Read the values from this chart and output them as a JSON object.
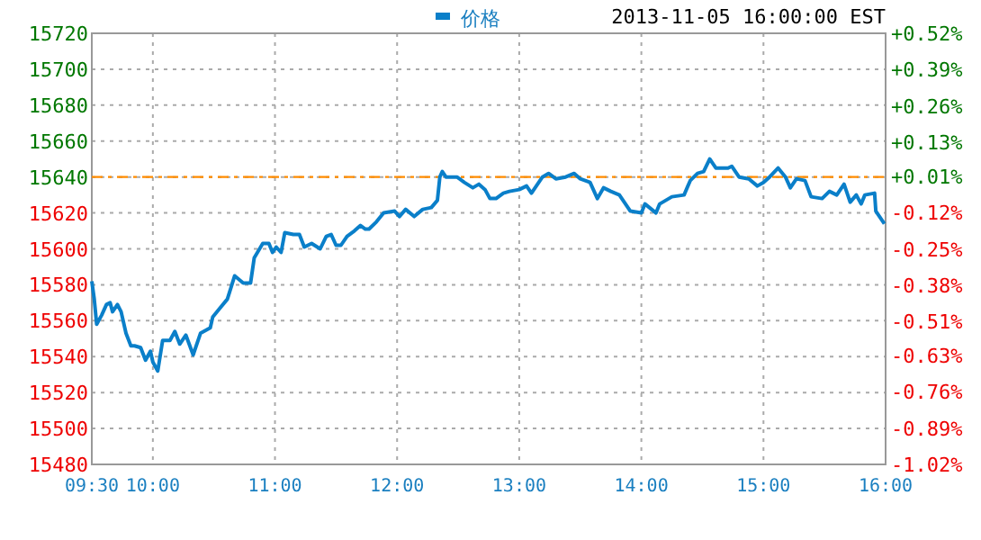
{
  "chart_data": {
    "type": "line",
    "subtitle": "2013-11-05 16:00:00 EST",
    "x": [
      9.5,
      9.52,
      9.54,
      9.58,
      9.62,
      9.65,
      9.67,
      9.71,
      9.74,
      9.78,
      9.82,
      9.85,
      9.9,
      9.94,
      9.98,
      10.0,
      10.04,
      10.08,
      10.14,
      10.18,
      10.22,
      10.27,
      10.33,
      10.39,
      10.47,
      10.49,
      10.55,
      10.61,
      10.67,
      10.74,
      10.8,
      10.83,
      10.9,
      10.95,
      10.98,
      11.01,
      11.05,
      11.08,
      11.15,
      11.2,
      11.24,
      11.3,
      11.37,
      11.42,
      11.46,
      11.5,
      11.54,
      11.59,
      11.65,
      11.7,
      11.74,
      11.77,
      11.83,
      11.89,
      11.98,
      12.02,
      12.07,
      12.14,
      12.21,
      12.28,
      12.33,
      12.35,
      12.37,
      12.4,
      12.49,
      12.55,
      12.62,
      12.67,
      12.72,
      12.76,
      12.81,
      12.87,
      12.92,
      13.0,
      13.06,
      13.1,
      13.15,
      13.19,
      13.24,
      13.3,
      13.38,
      13.45,
      13.5,
      13.58,
      13.64,
      13.69,
      13.75,
      13.82,
      13.91,
      14.0,
      14.03,
      14.12,
      14.15,
      14.25,
      14.35,
      14.4,
      14.46,
      14.51,
      14.56,
      14.61,
      14.71,
      14.74,
      14.8,
      14.88,
      14.95,
      15.0,
      15.05,
      15.12,
      15.18,
      15.22,
      15.27,
      15.34,
      15.39,
      15.48,
      15.54,
      15.6,
      15.66,
      15.71,
      15.76,
      15.8,
      15.83,
      15.91,
      15.92,
      15.99
    ],
    "series": [
      {
        "name": "价格",
        "color": "#0a7fc9",
        "values": [
          15582,
          15572,
          15558,
          15563,
          15569,
          15570,
          15565,
          15569,
          15565,
          15553,
          15546,
          15546,
          15545,
          15538,
          15543,
          15537,
          15532,
          15549,
          15549,
          15554,
          15547,
          15552,
          15541,
          15553,
          15556,
          15562,
          15567,
          15572,
          15585,
          15581,
          15581,
          15595,
          15603,
          15603,
          15598,
          15601,
          15598,
          15609,
          15608,
          15608,
          15601,
          15603,
          15600,
          15607,
          15608,
          15602,
          15602,
          15607,
          15610,
          15613,
          15611,
          15611,
          15615,
          15620,
          15621,
          15618,
          15622,
          15618,
          15622,
          15623,
          15627,
          15640,
          15643,
          15640,
          15640,
          15637,
          15634,
          15636,
          15633,
          15628,
          15628,
          15631,
          15632,
          15633,
          15635,
          15631,
          15636,
          15640,
          15642,
          15639,
          15640,
          15642,
          15639,
          15637,
          15628,
          15634,
          15632,
          15630,
          15621,
          15620,
          15625,
          15620,
          15625,
          15629,
          15630,
          15638,
          15642,
          15643,
          15650,
          15645,
          15645,
          15646,
          15640,
          15639,
          15635,
          15637,
          15640,
          15645,
          15640,
          15634,
          15639,
          15638,
          15629,
          15628,
          15632,
          15630,
          15636,
          15626,
          15630,
          15625,
          15630,
          15631,
          15621,
          15614
        ]
      }
    ],
    "xlim": [
      9.5,
      16
    ],
    "xticks": [
      {
        "value": 9.5,
        "label": "09:30"
      },
      {
        "value": 10,
        "label": "10:00"
      },
      {
        "value": 11,
        "label": "11:00"
      },
      {
        "value": 12,
        "label": "12:00"
      },
      {
        "value": 13,
        "label": "13:00"
      },
      {
        "value": 14,
        "label": "14:00"
      },
      {
        "value": 15,
        "label": "15:00"
      },
      {
        "value": 16,
        "label": "16:00"
      }
    ],
    "ylim": [
      15480,
      15720
    ],
    "yticks": [
      15480,
      15500,
      15520,
      15540,
      15560,
      15580,
      15600,
      15620,
      15640,
      15660,
      15680,
      15700,
      15720
    ],
    "y2lim": [
      -1.02,
      0.52
    ],
    "y2ticks": [
      {
        "value": -1.02,
        "label": "-1.02%"
      },
      {
        "value": -0.89,
        "label": "-0.89%"
      },
      {
        "value": -0.76,
        "label": "-0.76%"
      },
      {
        "value": -0.63,
        "label": "-0.63%"
      },
      {
        "value": -0.51,
        "label": "-0.51%"
      },
      {
        "value": -0.38,
        "label": "-0.38%"
      },
      {
        "value": -0.25,
        "label": "-0.25%"
      },
      {
        "value": -0.12,
        "label": "-0.12%"
      },
      {
        "value": 0.01,
        "label": "+0.01%"
      },
      {
        "value": 0.13,
        "label": "+0.13%"
      },
      {
        "value": 0.26,
        "label": "+0.26%"
      },
      {
        "value": 0.39,
        "label": "+0.39%"
      },
      {
        "value": 0.52,
        "label": "+0.52%"
      }
    ],
    "ref_lines": [
      {
        "axis": "y",
        "value": 15640,
        "color": "#ff8c00",
        "line_style": "dashed"
      }
    ],
    "grid": true,
    "legend": "top",
    "marker": "none",
    "line_style": "solid"
  }
}
